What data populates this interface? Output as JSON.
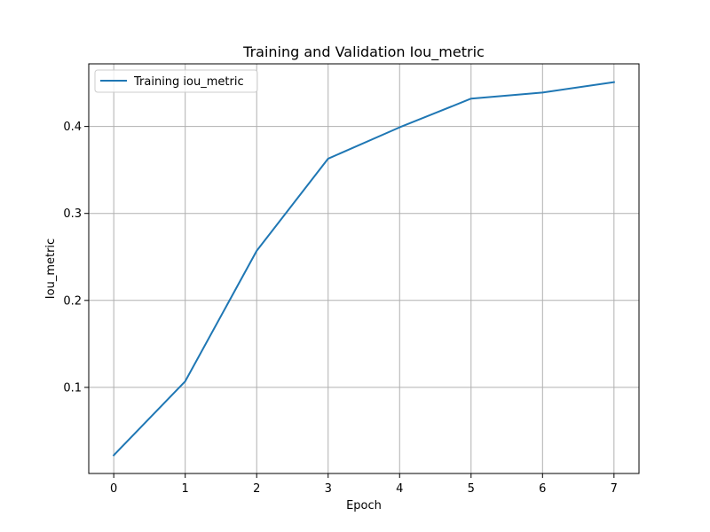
{
  "chart_data": {
    "type": "line",
    "title": "Training and Validation Iou_metric",
    "xlabel": "Epoch",
    "ylabel": "Iou_metric",
    "x": [
      0,
      1,
      2,
      3,
      4,
      5,
      6,
      7
    ],
    "xticks": [
      0,
      1,
      2,
      3,
      4,
      5,
      6,
      7
    ],
    "xtick_labels": [
      "0",
      "1",
      "2",
      "3",
      "4",
      "5",
      "6",
      "7"
    ],
    "yticks": [
      0.1,
      0.2,
      0.3,
      0.4
    ],
    "ytick_labels": [
      "0.1",
      "0.2",
      "0.3",
      "0.4"
    ],
    "xlim": [
      -0.35,
      7.35
    ],
    "ylim": [
      0.001,
      0.472
    ],
    "grid": true,
    "legend_position": "upper-left",
    "series": [
      {
        "name": "Training iou_metric",
        "color": "#1f77b4",
        "values": [
          0.022,
          0.107,
          0.257,
          0.363,
          0.399,
          0.432,
          0.439,
          0.451
        ]
      }
    ]
  }
}
